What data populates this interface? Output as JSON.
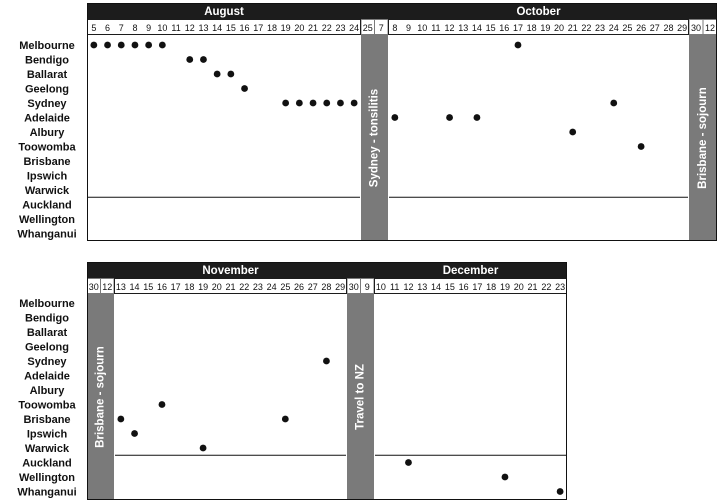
{
  "chart_data": {
    "type": "scatter",
    "description_rows": [
      "Melbourne",
      "Bendigo",
      "Ballarat",
      "Geelong",
      "Sydney",
      "Adelaide",
      "Albury",
      "Toowomba",
      "Brisbane",
      "Ipswich",
      "Warwick",
      "Auckland",
      "Wellington",
      "Whanganui"
    ],
    "colors": {
      "header": "#1c1c1c",
      "gap": "#7a7a7a",
      "dot": "#111111"
    },
    "panels": [
      {
        "id": "top",
        "columns": [
          {
            "kind": "month",
            "label": "August",
            "days": [
              "5",
              "6",
              "7",
              "8",
              "9",
              "10",
              "11",
              "12",
              "13",
              "14",
              "15",
              "16",
              "17",
              "18",
              "19",
              "20",
              "21",
              "22",
              "23",
              "24"
            ]
          },
          {
            "kind": "gap",
            "label": "Sydney - tonsilitis",
            "days": [
              "25",
              "7"
            ]
          },
          {
            "kind": "month",
            "label": "October",
            "days": [
              "8",
              "9",
              "10",
              "11",
              "12",
              "13",
              "14",
              "15",
              "16",
              "17",
              "18",
              "19",
              "20",
              "21",
              "22",
              "23",
              "24",
              "25",
              "26",
              "27",
              "28",
              "29"
            ]
          },
          {
            "kind": "gap",
            "label": "Brisbane - sojourn",
            "days": [
              "30",
              "12"
            ]
          }
        ],
        "points": [
          {
            "month": "August",
            "day": "5",
            "city": "Melbourne"
          },
          {
            "month": "August",
            "day": "6",
            "city": "Melbourne"
          },
          {
            "month": "August",
            "day": "7",
            "city": "Melbourne"
          },
          {
            "month": "August",
            "day": "8",
            "city": "Melbourne"
          },
          {
            "month": "August",
            "day": "9",
            "city": "Melbourne"
          },
          {
            "month": "August",
            "day": "10",
            "city": "Melbourne"
          },
          {
            "month": "August",
            "day": "12",
            "city": "Bendigo"
          },
          {
            "month": "August",
            "day": "13",
            "city": "Bendigo"
          },
          {
            "month": "August",
            "day": "14",
            "city": "Ballarat"
          },
          {
            "month": "August",
            "day": "15",
            "city": "Ballarat"
          },
          {
            "month": "August",
            "day": "16",
            "city": "Geelong"
          },
          {
            "month": "August",
            "day": "19",
            "city": "Sydney"
          },
          {
            "month": "August",
            "day": "20",
            "city": "Sydney"
          },
          {
            "month": "August",
            "day": "21",
            "city": "Sydney"
          },
          {
            "month": "August",
            "day": "22",
            "city": "Sydney"
          },
          {
            "month": "August",
            "day": "23",
            "city": "Sydney"
          },
          {
            "month": "August",
            "day": "24",
            "city": "Sydney"
          },
          {
            "month": "October",
            "day": "8",
            "city": "Adelaide"
          },
          {
            "month": "October",
            "day": "12",
            "city": "Adelaide"
          },
          {
            "month": "October",
            "day": "14",
            "city": "Adelaide"
          },
          {
            "month": "October",
            "day": "17",
            "city": "Melbourne"
          },
          {
            "month": "October",
            "day": "21",
            "city": "Albury"
          },
          {
            "month": "October",
            "day": "24",
            "city": "Sydney"
          },
          {
            "month": "October",
            "day": "26",
            "city": "Toowomba"
          }
        ]
      },
      {
        "id": "bottom",
        "columns": [
          {
            "kind": "gap",
            "label": "Brisbane - sojourn",
            "days": [
              "30",
              "12"
            ]
          },
          {
            "kind": "month",
            "label": "November",
            "days": [
              "13",
              "14",
              "15",
              "16",
              "17",
              "18",
              "19",
              "20",
              "21",
              "22",
              "23",
              "24",
              "25",
              "26",
              "27",
              "28",
              "29"
            ]
          },
          {
            "kind": "gap",
            "label": "Travel to NZ",
            "days": [
              "30",
              "9"
            ]
          },
          {
            "kind": "month",
            "label": "December",
            "days": [
              "10",
              "11",
              "12",
              "13",
              "14",
              "15",
              "16",
              "17",
              "18",
              "19",
              "20",
              "21",
              "22",
              "23"
            ]
          }
        ],
        "points": [
          {
            "month": "November",
            "day": "13",
            "city": "Brisbane"
          },
          {
            "month": "November",
            "day": "14",
            "city": "Ipswich"
          },
          {
            "month": "November",
            "day": "16",
            "city": "Toowomba"
          },
          {
            "month": "November",
            "day": "19",
            "city": "Warwick"
          },
          {
            "month": "November",
            "day": "25",
            "city": "Brisbane"
          },
          {
            "month": "November",
            "day": "28",
            "city": "Sydney"
          },
          {
            "month": "December",
            "day": "12",
            "city": "Auckland"
          },
          {
            "month": "December",
            "day": "19",
            "city": "Wellington"
          },
          {
            "month": "December",
            "day": "23",
            "city": "Whanganui"
          }
        ]
      }
    ]
  }
}
